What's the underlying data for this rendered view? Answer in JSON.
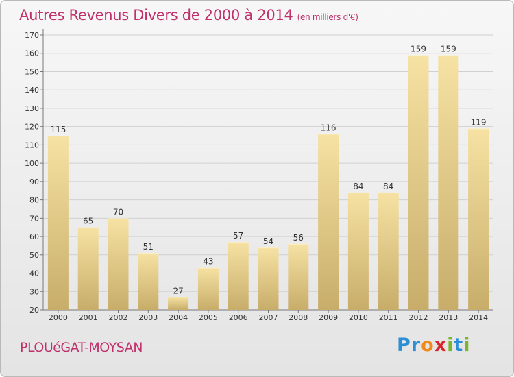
{
  "title": "Autres Revenus Divers de 2000 à 2014",
  "title_unit": "(en milliers d'€)",
  "place": "PLOUéGAT-MOYSAN",
  "logo": {
    "letters": [
      "P",
      "r",
      "o",
      "x",
      "i",
      "t",
      "i"
    ],
    "colors": [
      "#2c8fd6",
      "#2c8fd6",
      "#f28a1a",
      "#d8262d",
      "#7ab52c",
      "#2c8fd6",
      "#7ab52c"
    ]
  },
  "colors": {
    "bar_light": "#f6e2a3",
    "bar_dark": "#c8ad6a",
    "grid": "#d0d0d0",
    "axis": "#777777",
    "text": "#333333",
    "accent": "#c0306a"
  },
  "chart_data": {
    "type": "bar",
    "categories": [
      "2000",
      "2001",
      "2002",
      "2003",
      "2004",
      "2005",
      "2006",
      "2007",
      "2008",
      "2009",
      "2010",
      "2011",
      "2012",
      "2013",
      "2014"
    ],
    "values": [
      115,
      65,
      70,
      51,
      27,
      43,
      57,
      54,
      56,
      116,
      84,
      84,
      159,
      159,
      119
    ],
    "ylim": [
      20,
      170
    ],
    "yticks": [
      20,
      30,
      40,
      50,
      60,
      70,
      80,
      90,
      100,
      110,
      120,
      130,
      140,
      150,
      160,
      170
    ],
    "grid": true
  }
}
